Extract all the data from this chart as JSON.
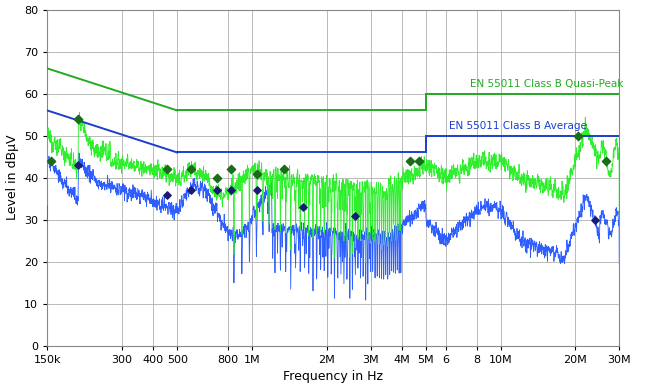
{
  "title": "",
  "xlabel": "Frequency in Hz",
  "ylabel": "Level in dBμV",
  "ylim": [
    0,
    80
  ],
  "yticks": [
    0,
    10,
    20,
    30,
    40,
    50,
    60,
    70,
    80
  ],
  "xlog_min": 150000,
  "xlog_max": 30000000,
  "xtick_positions": [
    150000,
    300000,
    400000,
    500000,
    800000,
    1000000,
    2000000,
    3000000,
    4000000,
    5000000,
    6000000,
    8000000,
    10000000,
    20000000,
    30000000
  ],
  "xtick_labels": [
    "150k",
    "300",
    "400",
    "500",
    "800",
    "1M",
    "2M",
    "3M",
    "4M",
    "5M",
    "6",
    "8",
    "10M",
    "20M",
    "30M"
  ],
  "qp_limit_color": "#22aa22",
  "avg_limit_color": "#1a3fcc",
  "qp_line_label": "EN 55011 Class B Quasi-Peak",
  "avg_line_label": "EN 55011 Class B Average",
  "background_color": "#ffffff",
  "grid_color": "#b0b0b0",
  "measured_qp_color": "#22ee22",
  "measured_avg_color": "#2255ff",
  "qp_text_color": "#22aa22",
  "avg_text_color": "#1a3fcc",
  "diamond_qp_color": "#1a6b1a",
  "diamond_avg_color": "#1a1a77"
}
